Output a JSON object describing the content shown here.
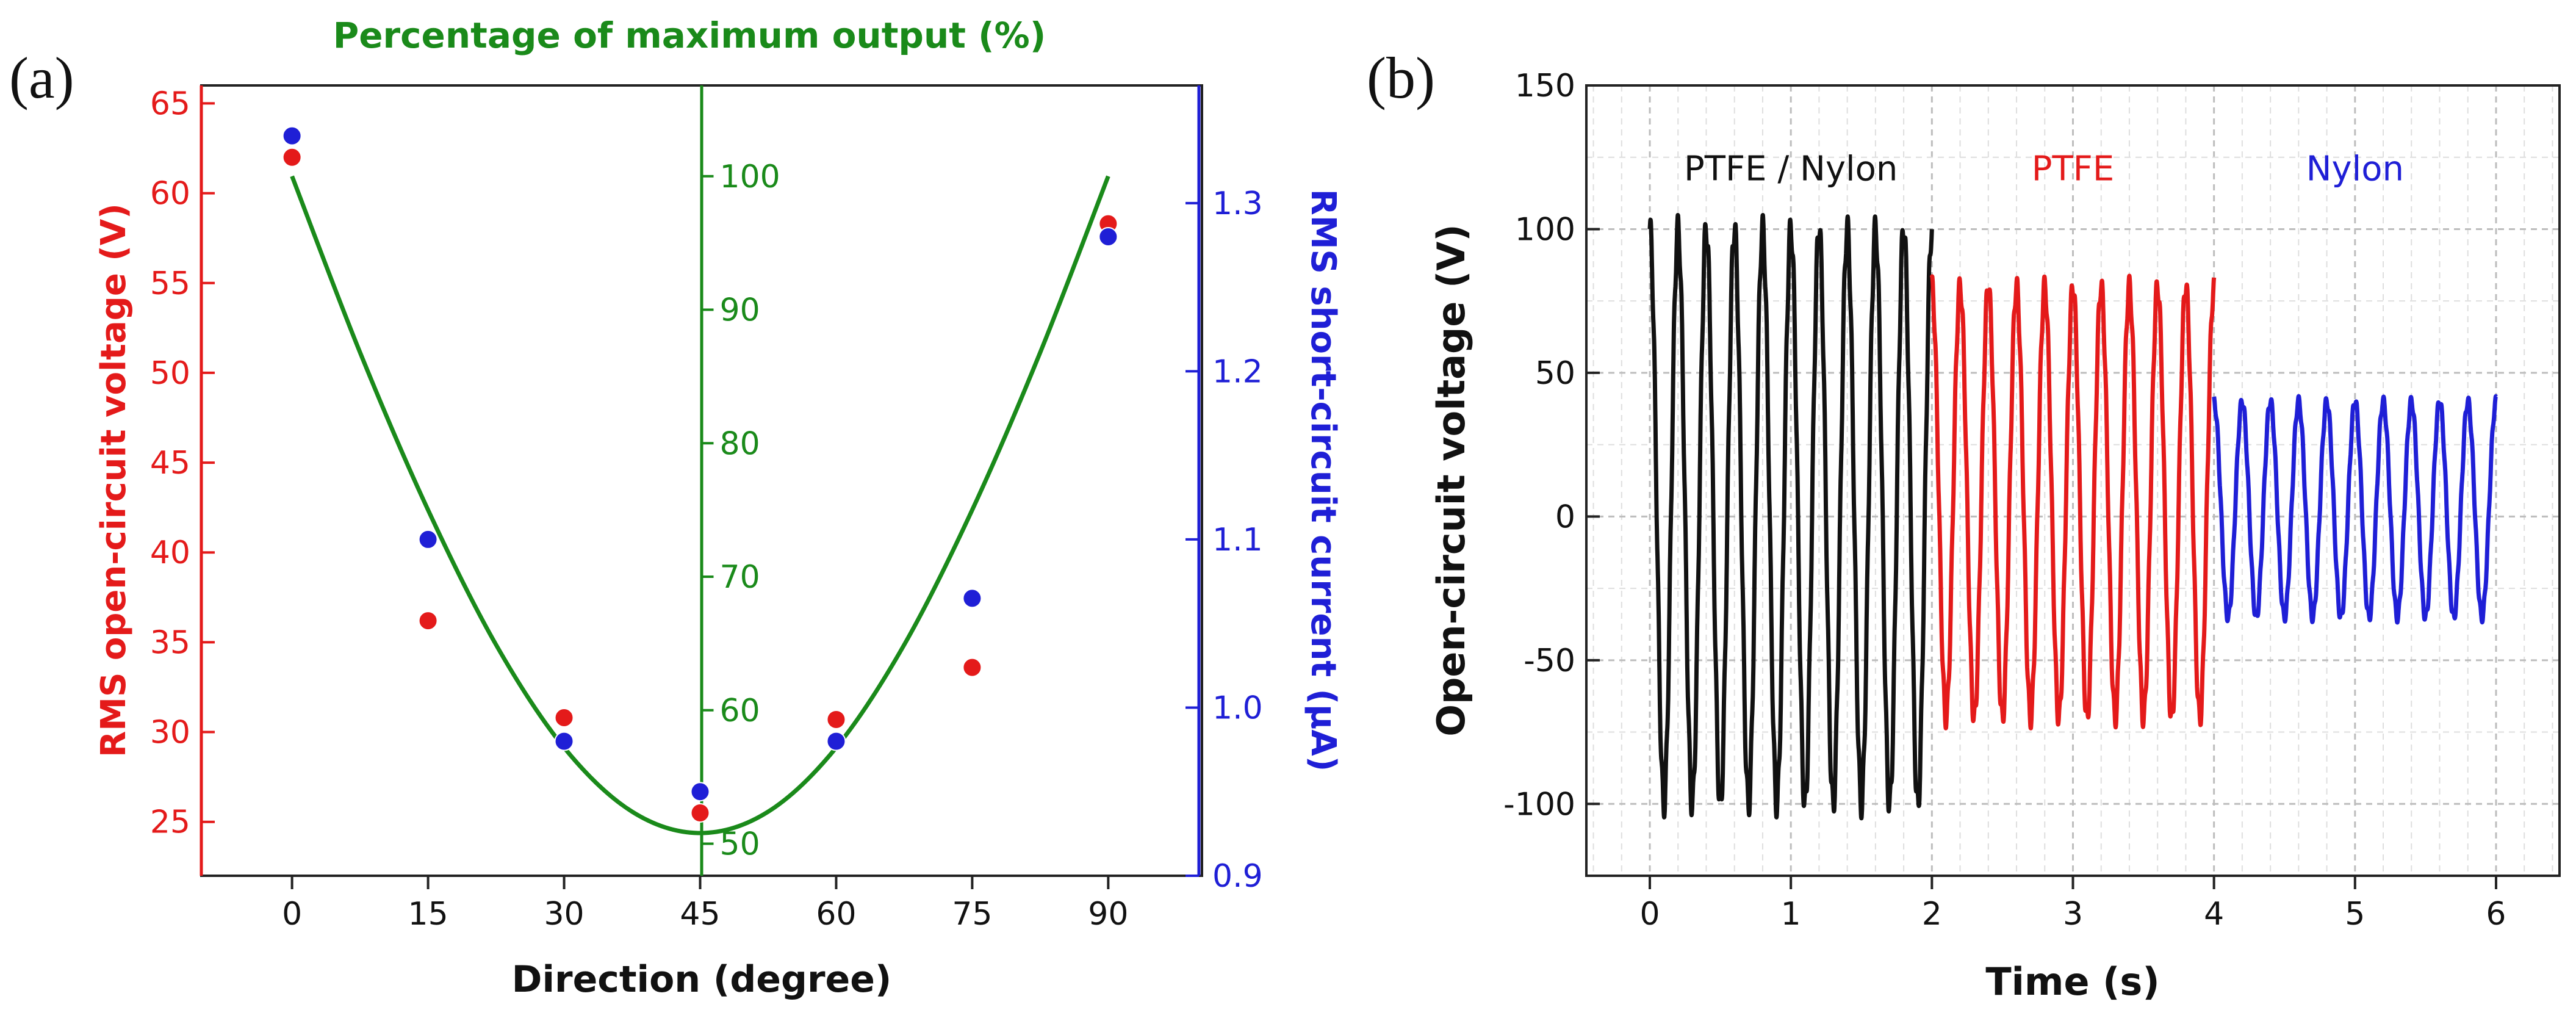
{
  "panel_a": {
    "label": "(a)",
    "chart_data": {
      "type": "scatter",
      "title": "Percentage of maximum output (%)",
      "xlabel": "Direction (degree)",
      "ylabel_left": "RMS open-circuit voltage (V)",
      "ylabel_right": "RMS short-circuit current (μA)",
      "xlim": [
        -10,
        100
      ],
      "x_ticks": [
        "0",
        "15",
        "30",
        "45",
        "60",
        "75",
        "90"
      ],
      "y_left_lim": [
        22,
        66
      ],
      "y_left_ticks": [
        "25",
        "30",
        "35",
        "40",
        "45",
        "50",
        "55",
        "60",
        "65"
      ],
      "y_mid_lim": [
        47.6,
        106.8
      ],
      "y_mid_ticks": [
        "50",
        "60",
        "70",
        "80",
        "90",
        "100"
      ],
      "y_right_lim": [
        0.9,
        1.37
      ],
      "y_right_ticks": [
        "0.9",
        "1.0",
        "1.1",
        "1.2",
        "1.3"
      ],
      "series": [
        {
          "name": "RMS open-circuit voltage",
          "axis": "left",
          "color": "#e41a1a",
          "x": [
            0,
            15,
            30,
            45,
            60,
            75,
            90
          ],
          "values": [
            62,
            36.2,
            30.8,
            25.5,
            30.7,
            33.6,
            58.3
          ]
        },
        {
          "name": "RMS short-circuit current",
          "axis": "right",
          "color": "#1f1fd6",
          "x": [
            0,
            15,
            30,
            45,
            60,
            75,
            90
          ],
          "values": [
            1.34,
            1.1,
            0.98,
            0.95,
            0.98,
            1.065,
            1.28
          ]
        },
        {
          "name": "Percentage of maximum output",
          "axis": "mid",
          "color": "#1a8a1a",
          "type": "line",
          "x": [
            0,
            7.5,
            15,
            22.5,
            30,
            37.5,
            45,
            52.5,
            60,
            67.5,
            75,
            82.5,
            90
          ],
          "values": [
            100,
            86.8,
            75,
            64.9,
            57.2,
            52.4,
            50.8,
            52.4,
            57.2,
            64.9,
            75,
            86.8,
            100
          ]
        }
      ]
    }
  },
  "panel_b": {
    "label": "(b)",
    "chart_data": {
      "type": "line",
      "xlabel": "Time (s)",
      "ylabel": "Open-circuit voltage (V)",
      "xlim": [
        -0.45,
        6.45
      ],
      "x_ticks": [
        "0",
        "1",
        "2",
        "3",
        "4",
        "5",
        "6"
      ],
      "ylim": [
        -125,
        150
      ],
      "y_ticks": [
        "-100",
        "-50",
        "0",
        "50",
        "100",
        "150"
      ],
      "grid": true,
      "annotations": [
        {
          "text": "PTFE / Nylon",
          "color": "#111111"
        },
        {
          "text": "PTFE",
          "color": "#e41a1a"
        },
        {
          "text": "Nylon",
          "color": "#1f1fd6"
        }
      ],
      "series": [
        {
          "name": "PTFE / Nylon",
          "color": "#111111",
          "t_start": 0,
          "t_end": 2,
          "max": 100,
          "min": -100,
          "cycles": 10
        },
        {
          "name": "PTFE",
          "color": "#e41a1a",
          "t_start": 2,
          "t_end": 4,
          "max": 80,
          "min": -70,
          "cycles": 10
        },
        {
          "name": "Nylon",
          "color": "#1f1fd6",
          "t_start": 4,
          "t_end": 6,
          "max": 40,
          "min": -35,
          "cycles": 10
        }
      ]
    }
  }
}
